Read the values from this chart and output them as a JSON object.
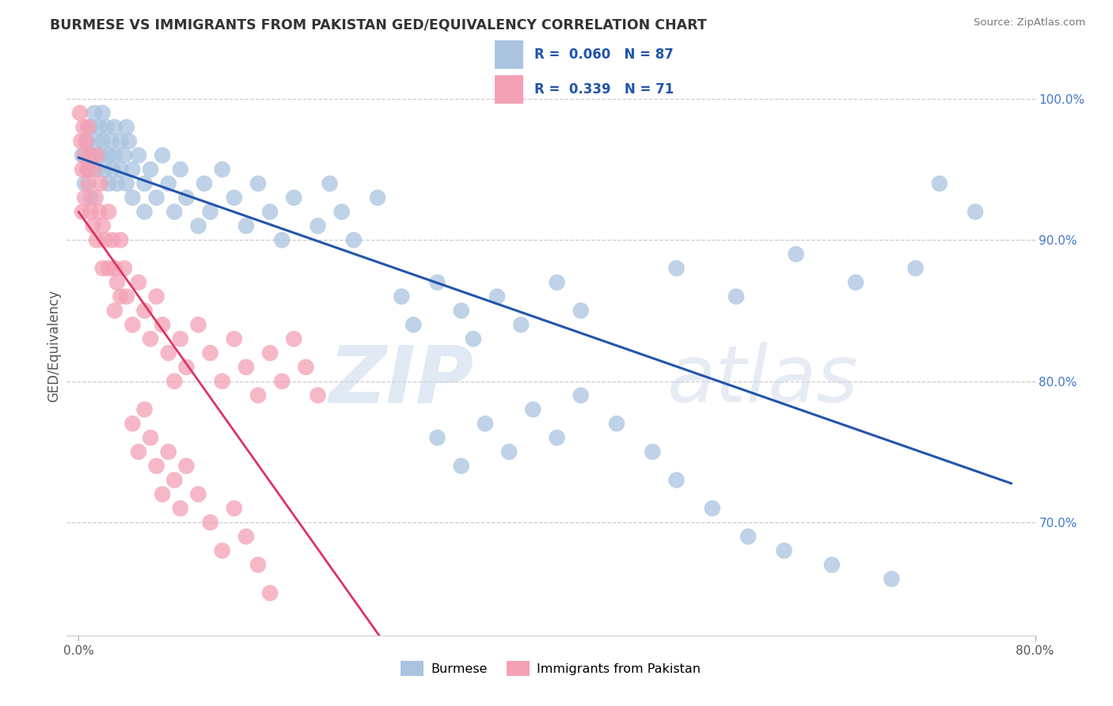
{
  "title": "BURMESE VS IMMIGRANTS FROM PAKISTAN GED/EQUIVALENCY CORRELATION CHART",
  "source": "Source: ZipAtlas.com",
  "ylabel": "GED/Equivalency",
  "legend_burmese": "Burmese",
  "legend_pakistan": "Immigrants from Pakistan",
  "blue_R": 0.06,
  "blue_N": 87,
  "pink_R": 0.339,
  "pink_N": 71,
  "blue_color": "#aac4e0",
  "pink_color": "#f4a0b5",
  "blue_line_color": "#2255aa",
  "pink_line_color": "#dd3366",
  "watermark_zip": "ZIP",
  "watermark_atlas": "atlas",
  "xmin": 0.0,
  "xmax": 80.0,
  "ymin": 62.0,
  "ymax": 103.0,
  "ytick_vals": [
    70,
    80,
    90,
    100
  ],
  "blue_x": [
    0.3,
    0.5,
    0.7,
    0.8,
    1.0,
    1.0,
    1.2,
    1.3,
    1.5,
    1.5,
    1.7,
    1.8,
    2.0,
    2.0,
    2.2,
    2.3,
    2.5,
    2.5,
    2.7,
    2.8,
    3.0,
    3.0,
    3.2,
    3.5,
    3.5,
    3.8,
    4.0,
    4.0,
    4.2,
    4.5,
    4.5,
    5.0,
    5.5,
    5.5,
    6.0,
    6.5,
    7.0,
    7.5,
    8.0,
    8.5,
    9.0,
    10.0,
    10.5,
    11.0,
    12.0,
    13.0,
    14.0,
    15.0,
    16.0,
    17.0,
    18.0,
    20.0,
    21.0,
    22.0,
    23.0,
    25.0,
    27.0,
    28.0,
    30.0,
    32.0,
    33.0,
    35.0,
    37.0,
    40.0,
    42.0,
    50.0,
    55.0,
    60.0,
    65.0,
    70.0,
    30.0,
    32.0,
    34.0,
    36.0,
    38.0,
    40.0,
    42.0,
    45.0,
    48.0,
    50.0,
    53.0,
    56.0,
    59.0,
    63.0,
    68.0,
    72.0,
    75.0
  ],
  "blue_y": [
    96.0,
    94.0,
    97.0,
    95.0,
    98.0,
    93.0,
    96.0,
    99.0,
    97.0,
    95.0,
    98.0,
    96.0,
    99.0,
    97.0,
    95.0,
    98.0,
    96.0,
    94.0,
    97.0,
    95.0,
    98.0,
    96.0,
    94.0,
    97.0,
    95.0,
    96.0,
    98.0,
    94.0,
    97.0,
    95.0,
    93.0,
    96.0,
    94.0,
    92.0,
    95.0,
    93.0,
    96.0,
    94.0,
    92.0,
    95.0,
    93.0,
    91.0,
    94.0,
    92.0,
    95.0,
    93.0,
    91.0,
    94.0,
    92.0,
    90.0,
    93.0,
    91.0,
    94.0,
    92.0,
    90.0,
    93.0,
    86.0,
    84.0,
    87.0,
    85.0,
    83.0,
    86.0,
    84.0,
    87.0,
    85.0,
    88.0,
    86.0,
    89.0,
    87.0,
    88.0,
    76.0,
    74.0,
    77.0,
    75.0,
    78.0,
    76.0,
    79.0,
    77.0,
    75.0,
    73.0,
    71.0,
    69.0,
    68.0,
    67.0,
    66.0,
    94.0,
    92.0
  ],
  "pink_x": [
    0.1,
    0.2,
    0.3,
    0.3,
    0.4,
    0.5,
    0.5,
    0.6,
    0.7,
    0.8,
    0.8,
    1.0,
    1.0,
    1.2,
    1.2,
    1.4,
    1.5,
    1.5,
    1.7,
    1.8,
    2.0,
    2.0,
    2.2,
    2.5,
    2.5,
    2.8,
    3.0,
    3.0,
    3.2,
    3.5,
    3.5,
    3.8,
    4.0,
    4.5,
    5.0,
    5.5,
    6.0,
    6.5,
    7.0,
    7.5,
    8.0,
    8.5,
    9.0,
    10.0,
    11.0,
    12.0,
    13.0,
    14.0,
    15.0,
    16.0,
    17.0,
    18.0,
    19.0,
    20.0,
    4.5,
    5.0,
    5.5,
    6.0,
    6.5,
    7.0,
    7.5,
    8.0,
    8.5,
    9.0,
    10.0,
    11.0,
    12.0,
    13.0,
    14.0,
    15.0,
    16.0
  ],
  "pink_y": [
    99.0,
    97.0,
    95.0,
    92.0,
    98.0,
    96.0,
    93.0,
    97.0,
    95.0,
    98.0,
    94.0,
    96.0,
    92.0,
    95.0,
    91.0,
    93.0,
    96.0,
    90.0,
    92.0,
    94.0,
    91.0,
    88.0,
    90.0,
    92.0,
    88.0,
    90.0,
    88.0,
    85.0,
    87.0,
    90.0,
    86.0,
    88.0,
    86.0,
    84.0,
    87.0,
    85.0,
    83.0,
    86.0,
    84.0,
    82.0,
    80.0,
    83.0,
    81.0,
    84.0,
    82.0,
    80.0,
    83.0,
    81.0,
    79.0,
    82.0,
    80.0,
    83.0,
    81.0,
    79.0,
    77.0,
    75.0,
    78.0,
    76.0,
    74.0,
    72.0,
    75.0,
    73.0,
    71.0,
    74.0,
    72.0,
    70.0,
    68.0,
    71.0,
    69.0,
    67.0,
    65.0
  ]
}
